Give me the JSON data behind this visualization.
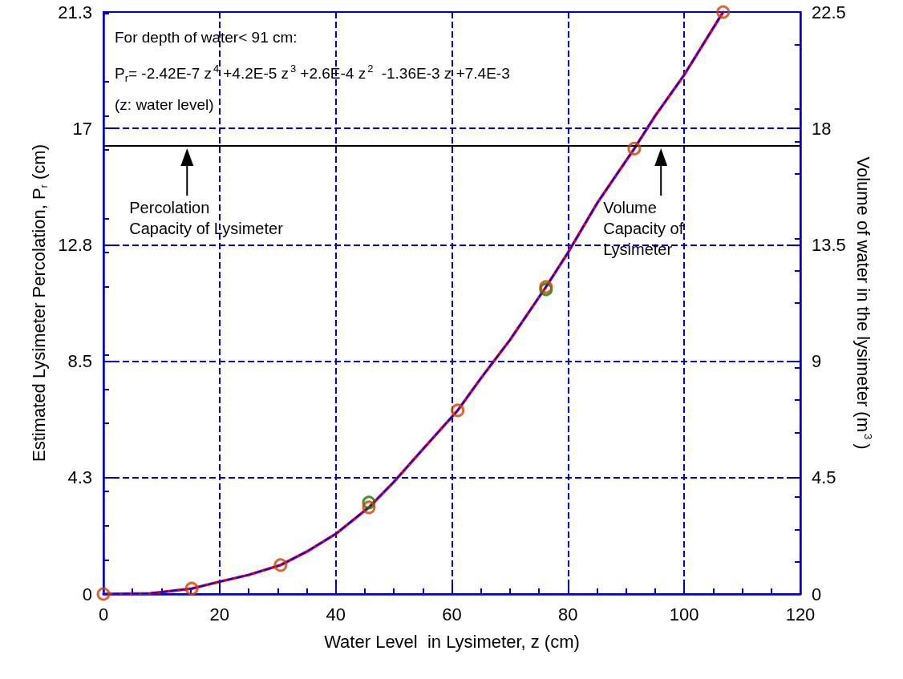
{
  "chart_data": {
    "type": "line",
    "xlabel": "Water Level  in Lysimeter, z (cm)",
    "ylabel": "Estimated Lysimeter Percolation, P$_{r}$ (cm)",
    "y2label": "Volume of water in the lysimeter (m$^{3}$)",
    "xlim": [
      0,
      120
    ],
    "xticks": [
      0,
      20,
      40,
      60,
      80,
      100,
      120
    ],
    "ylim": [
      0,
      21.3
    ],
    "yticks": [
      {
        "value": 0,
        "label": "0"
      },
      {
        "value": 4.26,
        "label": "4.3"
      },
      {
        "value": 8.52,
        "label": "8.5"
      },
      {
        "value": 12.78,
        "label": "12.8"
      },
      {
        "value": 17.04,
        "label": "17"
      },
      {
        "value": 21.3,
        "label": "21.3"
      }
    ],
    "y2lim": [
      0,
      22.5
    ],
    "y2ticks": [
      0,
      4.5,
      9,
      13.5,
      18,
      22.5
    ],
    "grid": true,
    "series": [
      {
        "color": "#ff0000",
        "line_style": "solid",
        "marker": "none",
        "x": [
          0,
          8,
          15.2,
          20,
          25,
          30.5,
          35,
          40,
          45.7,
          50,
          55,
          61,
          65,
          70,
          76.2,
          80,
          85,
          91.4,
          95,
          100,
          106.7
        ],
        "values": [
          0,
          0.02,
          0.2,
          0.45,
          0.7,
          1.06,
          1.55,
          2.2,
          3.17,
          4.1,
          5.3,
          6.72,
          7.9,
          9.3,
          11.24,
          12.5,
          14.3,
          16.3,
          17.5,
          19.0,
          21.3
        ]
      },
      {
        "color": "#0000ff",
        "line_style": "dashed",
        "marker": "none",
        "x": [
          0,
          8,
          15.2,
          20,
          25,
          30.5,
          35,
          40,
          45.7,
          50,
          55,
          61,
          65,
          70,
          76.2,
          80,
          85,
          91.4,
          95,
          100,
          106.7
        ],
        "values": [
          0,
          0.02,
          0.2,
          0.45,
          0.7,
          1.06,
          1.55,
          2.2,
          3.17,
          4.1,
          5.3,
          6.72,
          7.9,
          9.3,
          11.24,
          12.5,
          14.3,
          16.3,
          17.5,
          19.0,
          21.3
        ]
      },
      {
        "type": "scatter",
        "color": "#008000",
        "marker": "circle",
        "x": [
          45.7,
          76.2
        ],
        "values": [
          3.35,
          11.15
        ]
      },
      {
        "type": "scatter",
        "color": "#cc4400",
        "marker": "circle",
        "x": [
          0,
          15.2,
          30.5,
          45.7,
          61,
          76.2,
          91.4,
          106.7
        ],
        "values": [
          0,
          0.2,
          1.06,
          3.17,
          6.72,
          11.24,
          16.3,
          21.3
        ]
      }
    ],
    "ref_lines": [
      {
        "axis": "y",
        "value": 16.4,
        "color": "#000000",
        "line_style": "solid"
      }
    ],
    "annotations": [
      "For depth of water< 91 cm:",
      "P$_{r}$= -2.42E-7 z$^{4}$+4.2E-5 z$^{3}$+2.6E-4 z$^{2}$ -1.36E-3 z +7.4E-3",
      "(z: water level)",
      "Percolation\nCapacity of Lysimeter",
      "Volume\nCapacity of\nLysimeter"
    ]
  }
}
